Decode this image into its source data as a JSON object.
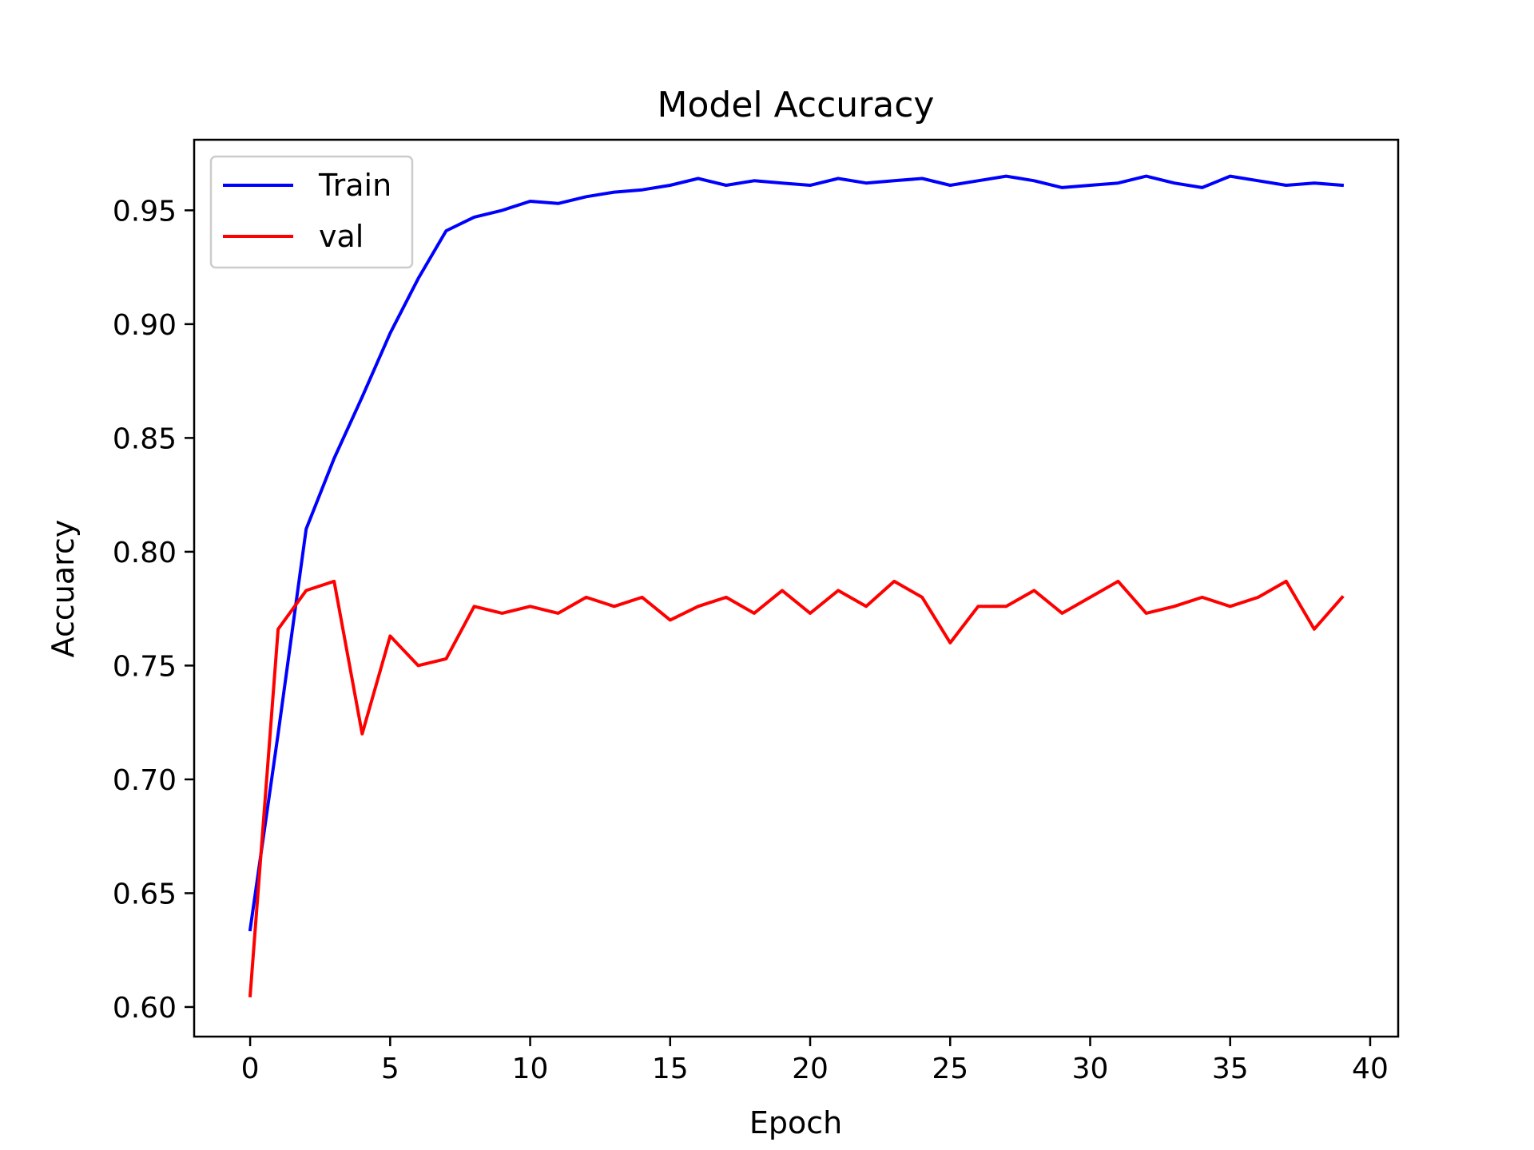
{
  "chart_data": {
    "type": "line",
    "title": "Model Accuracy",
    "xlabel": "Epoch",
    "ylabel": "Accuarcy",
    "xlim": [
      -2,
      41
    ],
    "ylim": [
      0.587,
      0.981
    ],
    "x_ticks": [
      0,
      5,
      10,
      15,
      20,
      25,
      30,
      35,
      40
    ],
    "y_ticks": [
      0.6,
      0.65,
      0.7,
      0.75,
      0.8,
      0.85,
      0.9,
      0.95
    ],
    "y_tick_labels": [
      "0.60",
      "0.65",
      "0.70",
      "0.75",
      "0.80",
      "0.85",
      "0.90",
      "0.95"
    ],
    "x_tick_labels": [
      "0",
      "5",
      "10",
      "15",
      "20",
      "25",
      "30",
      "35",
      "40"
    ],
    "grid": false,
    "legend_position": "upper-left",
    "x": [
      0,
      1,
      2,
      3,
      4,
      5,
      6,
      7,
      8,
      9,
      10,
      11,
      12,
      13,
      14,
      15,
      16,
      17,
      18,
      19,
      20,
      21,
      22,
      23,
      24,
      25,
      26,
      27,
      28,
      29,
      30,
      31,
      32,
      33,
      34,
      35,
      36,
      37,
      38,
      39
    ],
    "series": [
      {
        "name": "Train",
        "color": "#0000ff",
        "values": [
          0.634,
          0.72,
          0.81,
          0.841,
          0.868,
          0.896,
          0.92,
          0.941,
          0.947,
          0.95,
          0.954,
          0.953,
          0.956,
          0.958,
          0.959,
          0.961,
          0.964,
          0.961,
          0.963,
          0.962,
          0.961,
          0.964,
          0.962,
          0.963,
          0.964,
          0.961,
          0.963,
          0.965,
          0.963,
          0.96,
          0.961,
          0.962,
          0.965,
          0.962,
          0.96,
          0.965,
          0.963,
          0.961,
          0.962,
          0.961
        ]
      },
      {
        "name": "val",
        "color": "#ff0000",
        "values": [
          0.605,
          0.766,
          0.783,
          0.787,
          0.72,
          0.763,
          0.75,
          0.753,
          0.776,
          0.773,
          0.776,
          0.773,
          0.78,
          0.776,
          0.78,
          0.77,
          0.776,
          0.78,
          0.773,
          0.783,
          0.773,
          0.783,
          0.776,
          0.787,
          0.78,
          0.76,
          0.776,
          0.776,
          0.783,
          0.773,
          0.78,
          0.787,
          0.773,
          0.776,
          0.78,
          0.776,
          0.78,
          0.787,
          0.766,
          0.78
        ]
      }
    ]
  }
}
